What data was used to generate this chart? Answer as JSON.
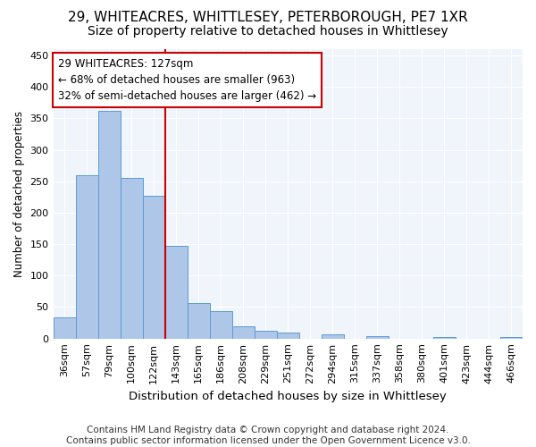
{
  "title1": "29, WHITEACRES, WHITTLESEY, PETERBOROUGH, PE7 1XR",
  "title2": "Size of property relative to detached houses in Whittlesey",
  "xlabel": "Distribution of detached houses by size in Whittlesey",
  "ylabel": "Number of detached properties",
  "categories": [
    "36sqm",
    "57sqm",
    "79sqm",
    "100sqm",
    "122sqm",
    "143sqm",
    "165sqm",
    "186sqm",
    "208sqm",
    "229sqm",
    "251sqm",
    "272sqm",
    "294sqm",
    "315sqm",
    "337sqm",
    "358sqm",
    "380sqm",
    "401sqm",
    "423sqm",
    "444sqm",
    "466sqm"
  ],
  "values": [
    34,
    260,
    362,
    255,
    227,
    148,
    57,
    44,
    20,
    12,
    9,
    0,
    6,
    0,
    4,
    0,
    0,
    3,
    0,
    0,
    3
  ],
  "bar_color": "#aec6e8",
  "bar_edge_color": "#5b9bd5",
  "vline_color": "#cc0000",
  "annotation_line1": "29 WHITEACRES: 127sqm",
  "annotation_line2": "← 68% of detached houses are smaller (963)",
  "annotation_line3": "32% of semi-detached houses are larger (462) →",
  "annotation_box_facecolor": "#ffffff",
  "annotation_box_edgecolor": "#cc0000",
  "ylim": [
    0,
    460
  ],
  "yticks": [
    0,
    50,
    100,
    150,
    200,
    250,
    300,
    350,
    400,
    450
  ],
  "footnote": "Contains HM Land Registry data © Crown copyright and database right 2024.\nContains public sector information licensed under the Open Government Licence v3.0.",
  "fig_facecolor": "#ffffff",
  "axes_facecolor": "#f0f4fb",
  "grid_color": "#ffffff",
  "title1_fontsize": 11,
  "title2_fontsize": 10,
  "xlabel_fontsize": 9.5,
  "ylabel_fontsize": 8.5,
  "tick_fontsize": 8,
  "footnote_fontsize": 7.5,
  "annotation_fontsize": 8.5
}
